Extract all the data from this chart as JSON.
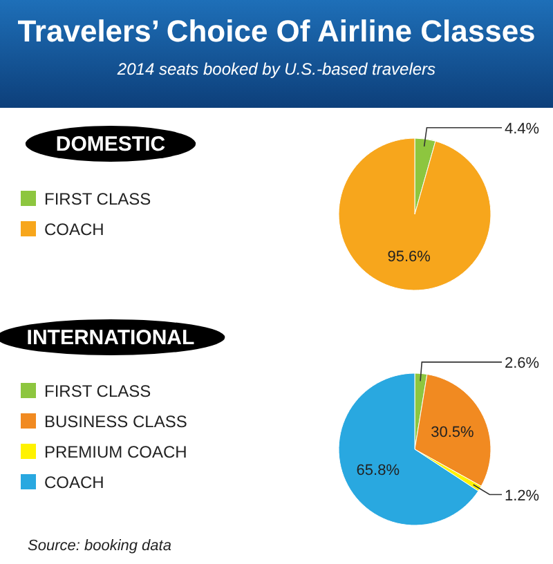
{
  "chart_data": [
    {
      "type": "other",
      "title": "Travelers’ Choice Of Airline Classes",
      "subtitle": "2014 seats booked by U.S.-based travelers",
      "annotations": [
        "Source: booking data"
      ]
    },
    {
      "type": "pie",
      "title": "DOMESTIC",
      "categories": [
        "FIRST CLASS",
        "COACH"
      ],
      "values": [
        4.4,
        95.6
      ],
      "colors": [
        "#8dc63f",
        "#f7a61c"
      ],
      "value_labels": [
        "4.4%",
        "95.6%"
      ],
      "legend": "left"
    },
    {
      "type": "pie",
      "title": "INTERNATIONAL",
      "categories": [
        "FIRST CLASS",
        "BUSINESS CLASS",
        "PREMIUM COACH",
        "COACH"
      ],
      "values": [
        2.6,
        30.5,
        1.2,
        65.8
      ],
      "colors": [
        "#8dc63f",
        "#f18a21",
        "#fff200",
        "#29a8e0"
      ],
      "value_labels": [
        "2.6%",
        "30.5%",
        "1.2%",
        "65.8%"
      ],
      "legend": "left"
    }
  ]
}
